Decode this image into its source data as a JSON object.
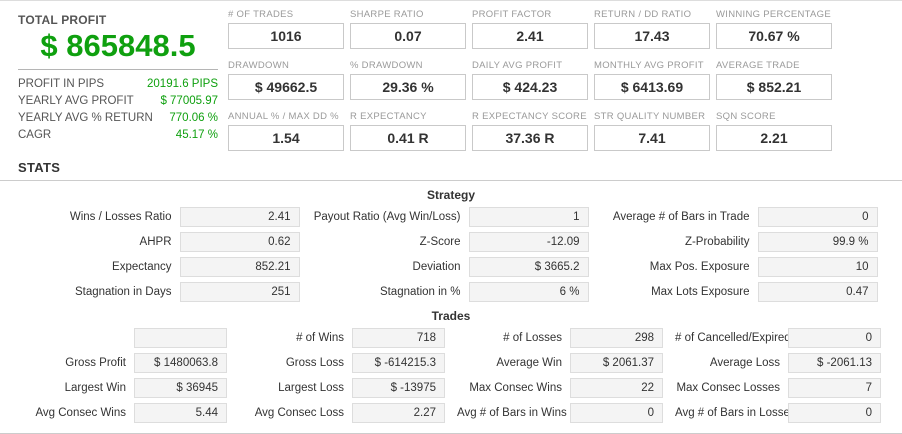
{
  "colors": {
    "accent_green": "#0fa00f"
  },
  "summary": {
    "title": "TOTAL PROFIT",
    "total_profit": "$ 865848.5",
    "rows": [
      {
        "label": "PROFIT IN PIPS",
        "value": "20191.6 PIPS"
      },
      {
        "label": "YEARLY AVG PROFIT",
        "value": "$ 77005.97"
      },
      {
        "label": "YEARLY AVG % RETURN",
        "value": "770.06 %"
      },
      {
        "label": "CAGR",
        "value": "45.17 %"
      }
    ]
  },
  "metrics": [
    {
      "label": "# OF TRADES",
      "value": "1016"
    },
    {
      "label": "SHARPE RATIO",
      "value": "0.07"
    },
    {
      "label": "PROFIT FACTOR",
      "value": "2.41"
    },
    {
      "label": "RETURN / DD RATIO",
      "value": "17.43"
    },
    {
      "label": "WINNING PERCENTAGE",
      "value": "70.67 %"
    },
    {
      "label": "DRAWDOWN",
      "value": "$ 49662.5"
    },
    {
      "label": "% DRAWDOWN",
      "value": "29.36 %"
    },
    {
      "label": "DAILY AVG PROFIT",
      "value": "$ 424.23"
    },
    {
      "label": "MONTHLY AVG PROFIT",
      "value": "$ 6413.69"
    },
    {
      "label": "AVERAGE TRADE",
      "value": "$ 852.21"
    },
    {
      "label": "ANNUAL % / MAX DD %",
      "value": "1.54"
    },
    {
      "label": "R EXPECTANCY",
      "value": "0.41 R"
    },
    {
      "label": "R EXPECTANCY SCORE",
      "value": "37.36 R"
    },
    {
      "label": "STR QUALITY NUMBER",
      "value": "7.41"
    },
    {
      "label": "SQN SCORE",
      "value": "2.21"
    }
  ],
  "stats": {
    "heading": "STATS",
    "strategy": {
      "title": "Strategy",
      "rows": [
        [
          {
            "label": "Wins / Losses Ratio",
            "value": "2.41"
          },
          {
            "label": "Payout Ratio (Avg Win/Loss)",
            "value": "1"
          },
          {
            "label": "Average # of Bars in Trade",
            "value": "0"
          }
        ],
        [
          {
            "label": "AHPR",
            "value": "0.62"
          },
          {
            "label": "Z-Score",
            "value": "-12.09"
          },
          {
            "label": "Z-Probability",
            "value": "99.9 %"
          }
        ],
        [
          {
            "label": "Expectancy",
            "value": "852.21"
          },
          {
            "label": "Deviation",
            "value": "$ 3665.2"
          },
          {
            "label": "Max Pos. Exposure",
            "value": "10"
          }
        ],
        [
          {
            "label": "Stagnation in Days",
            "value": "251"
          },
          {
            "label": "Stagnation in %",
            "value": "6 %"
          },
          {
            "label": "Max Lots Exposure",
            "value": "0.47"
          }
        ]
      ]
    },
    "trades": {
      "title": "Trades",
      "rows": [
        [
          {
            "label": "",
            "value": ""
          },
          {
            "label": "# of Wins",
            "value": "718"
          },
          {
            "label": "# of Losses",
            "value": "298"
          },
          {
            "label": "# of Cancelled/Expired",
            "value": "0"
          }
        ],
        [
          {
            "label": "Gross Profit",
            "value": "$ 1480063.8"
          },
          {
            "label": "Gross Loss",
            "value": "$ -614215.3"
          },
          {
            "label": "Average Win",
            "value": "$ 2061.37"
          },
          {
            "label": "Average Loss",
            "value": "$ -2061.13"
          }
        ],
        [
          {
            "label": "Largest Win",
            "value": "$ 36945"
          },
          {
            "label": "Largest Loss",
            "value": "$ -13975"
          },
          {
            "label": "Max Consec Wins",
            "value": "22"
          },
          {
            "label": "Max Consec Losses",
            "value": "7"
          }
        ],
        [
          {
            "label": "Avg Consec Wins",
            "value": "5.44"
          },
          {
            "label": "Avg Consec Loss",
            "value": "2.27"
          },
          {
            "label": "Avg # of Bars in Wins",
            "value": "0"
          },
          {
            "label": "Avg # of Bars in Losses",
            "value": "0"
          }
        ]
      ]
    }
  }
}
